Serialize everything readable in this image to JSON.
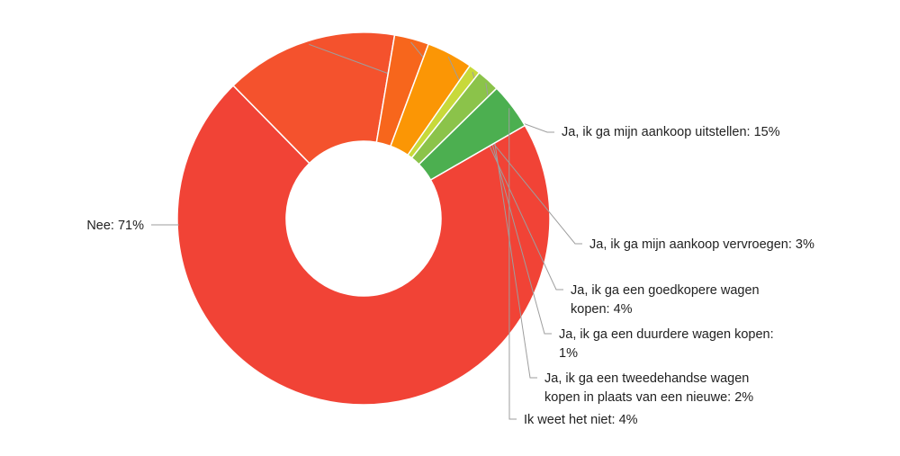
{
  "chart_data": {
    "type": "pie",
    "donut": true,
    "title": "",
    "slices": [
      {
        "label": "Nee: 71%",
        "value": 71,
        "color": "#f14336"
      },
      {
        "label": "Ja, ik ga mijn aankoop uitstellen: 15%",
        "value": 15,
        "color": "#f4522d"
      },
      {
        "label": "Ja, ik ga mijn aankoop vervroegen: 3%",
        "value": 3,
        "color": "#f7661c"
      },
      {
        "label": "Ja, ik ga een goedkopere wagen kopen: 4%",
        "value": 4,
        "color": "#fb9605"
      },
      {
        "label": "Ja, ik ga een duurdere wagen kopen: 1%",
        "value": 1,
        "color": "#c8d93a"
      },
      {
        "label": "Ja, ik ga een tweedehandse wagen kopen in plaats van een nieuwe: 2%",
        "value": 2,
        "color": "#8bc34a"
      },
      {
        "label": "Ik weet het niet: 4%",
        "value": 4,
        "color": "#4caf50"
      }
    ],
    "legend": "none",
    "labels": "outside, with leader lines"
  }
}
